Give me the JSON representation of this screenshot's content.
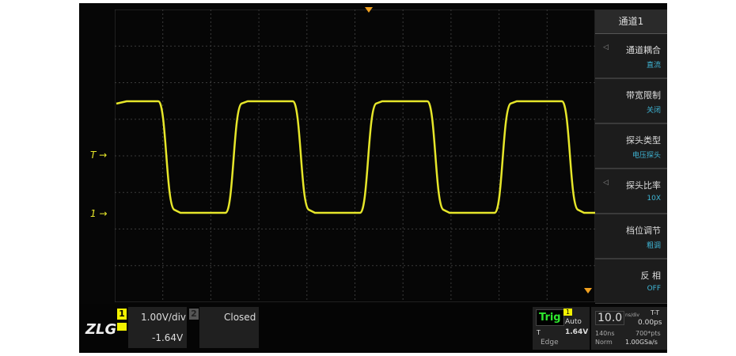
{
  "menu": {
    "title": "通道1",
    "items": [
      {
        "label": "通道耦合",
        "value": "直流",
        "arrow": true
      },
      {
        "label": "带宽限制",
        "value": "关闭",
        "arrow": false
      },
      {
        "label": "探头类型",
        "value": "电压探头",
        "arrow": false
      },
      {
        "label": "探头比率",
        "value": "10X",
        "arrow": true
      },
      {
        "label": "档位调节",
        "value": "粗调",
        "arrow": false
      },
      {
        "label": "反 相",
        "value": "OFF",
        "arrow": false
      }
    ]
  },
  "markers": {
    "trigger_level": "T",
    "channel1": "1"
  },
  "bottom": {
    "logo": "ZLG",
    "ch1": {
      "num": "1",
      "scale": "1.00V/div",
      "offset": "-1.64V"
    },
    "ch2": {
      "num": "2",
      "status": "Closed"
    },
    "trig": {
      "label": "Trig",
      "source": "1",
      "mode": "Auto",
      "level_label": "T",
      "level": "1.64V",
      "type": "Edge"
    },
    "time": {
      "scale": "10.0",
      "unit": "ns/div",
      "delay_label": "T-T",
      "delay": "0.00ps",
      "depth_label": "140ns",
      "points": "700*pts",
      "acq": "Norm",
      "rate": "1.00GSa/s"
    }
  },
  "colors": {
    "trace": "#e6e62a",
    "marker": "#f0a020",
    "grid": "#3a3a3a",
    "menu_value": "#3fb6d6",
    "trig_green": "#2ee82e"
  }
}
